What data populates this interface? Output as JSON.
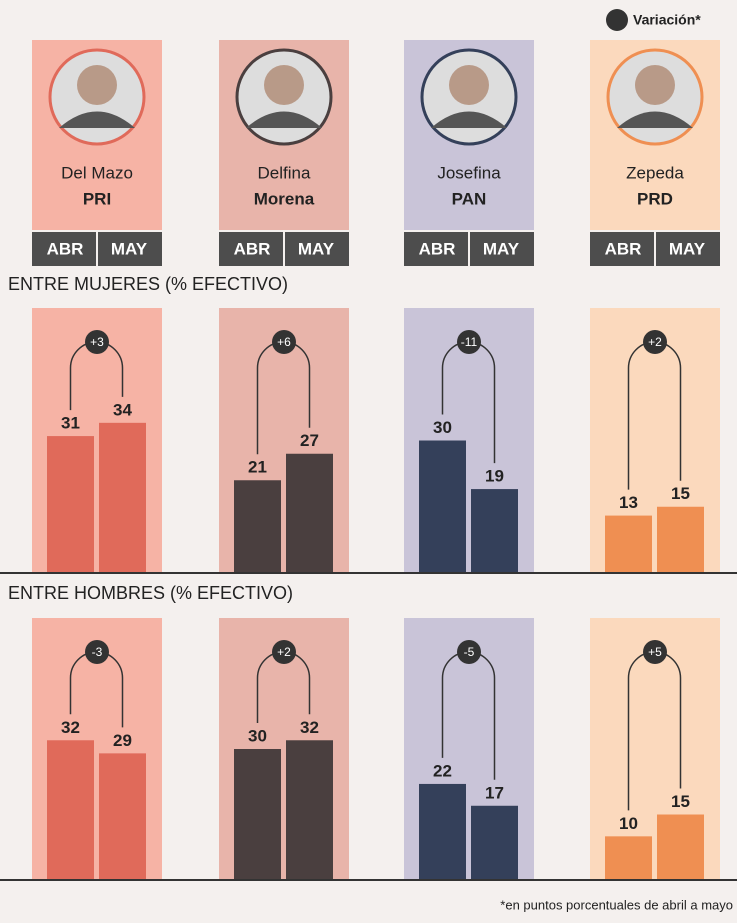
{
  "legend": "Variación*",
  "candidates": [
    {
      "name": "Del Mazo",
      "party": "PRI",
      "color": "#e06a5a",
      "tint": "#f6b3a5"
    },
    {
      "name": "Delfina",
      "party": "Morena",
      "color": "#4a3f3f",
      "tint": "#e8b4aa"
    },
    {
      "name": "Josefina",
      "party": "PAN",
      "color": "#34405a",
      "tint": "#c9c4d8"
    },
    {
      "name": "Zepeda",
      "party": "PRD",
      "color": "#ef8f52",
      "tint": "#fbd9bd"
    }
  ],
  "periods": [
    "ABR",
    "MAY"
  ],
  "footnote": "*en puntos porcentuales de abril a mayo",
  "chart_data": [
    {
      "type": "bar",
      "title": "ENTRE MUJERES (% EFECTIVO)",
      "series": [
        {
          "values": [
            31,
            21,
            30,
            13
          ]
        },
        {
          "values": [
            34,
            27,
            19,
            15
          ]
        }
      ],
      "variation": {
        "values": [
          3,
          6,
          -11,
          2
        ],
        "value_labels": [
          "+3",
          "+6",
          "-11",
          "+2"
        ]
      },
      "ylim": [
        0,
        60
      ]
    },
    {
      "type": "bar",
      "title": "ENTRE HOMBRES (% EFECTIVO)",
      "series": [
        {
          "values": [
            32,
            30,
            22,
            10
          ]
        },
        {
          "values": [
            29,
            32,
            17,
            15
          ]
        }
      ],
      "variation": {
        "values": [
          -3,
          2,
          -5,
          5
        ],
        "value_labels": [
          "-3",
          "+2",
          "-5",
          "+5"
        ]
      },
      "ylim": [
        0,
        60
      ]
    }
  ]
}
